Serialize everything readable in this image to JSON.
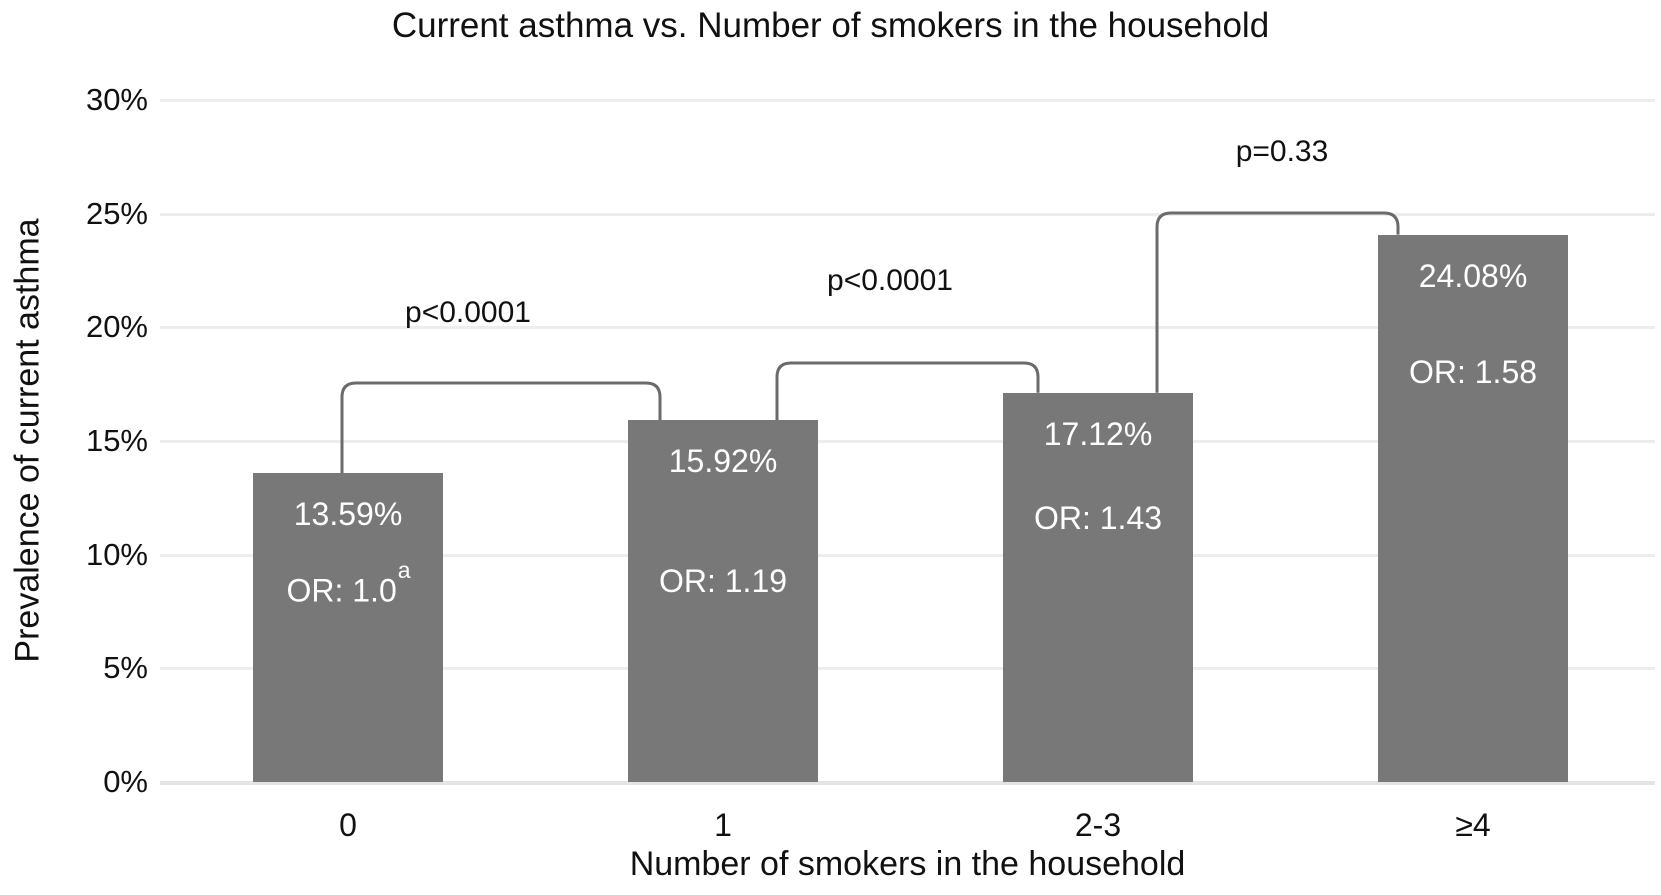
{
  "title": "Current asthma vs. Number of smokers in the household",
  "chart_data": {
    "type": "bar",
    "title": "Current asthma vs. Number of smokers in the household",
    "xlabel": "Number of smokers in the household",
    "ylabel": "Prevalence of current asthma",
    "categories": [
      "0",
      "1",
      "2-3",
      "≥4"
    ],
    "values": [
      13.59,
      15.92,
      17.12,
      24.08
    ],
    "bar_value_labels": [
      "13.59%",
      "15.92%",
      "17.12%",
      "24.08%"
    ],
    "odds_ratio_labels": [
      {
        "text": "OR: 1.0",
        "superscript": "a"
      },
      {
        "text": "OR: 1.19",
        "superscript": ""
      },
      {
        "text": "OR: 1.43",
        "superscript": ""
      },
      {
        "text": "OR: 1.58",
        "superscript": ""
      }
    ],
    "comparisons": [
      {
        "between": [
          "0",
          "1"
        ],
        "label": "p<0.0001"
      },
      {
        "between": [
          "1",
          "2-3"
        ],
        "label": "p<0.0001"
      },
      {
        "between": [
          "2-3",
          "≥4"
        ],
        "label": "p=0.33"
      }
    ],
    "y_ticks": [
      {
        "label": "0%",
        "value": 0
      },
      {
        "label": "5%",
        "value": 5
      },
      {
        "label": "10%",
        "value": 10
      },
      {
        "label": "15%",
        "value": 15
      },
      {
        "label": "20%",
        "value": 20
      },
      {
        "label": "25%",
        "value": 25
      },
      {
        "label": "30%",
        "value": 30
      }
    ],
    "ylim": [
      0,
      30
    ],
    "grid": true,
    "legend": "none",
    "colors": {
      "bar": "#787878",
      "bar_label": "#ffffff",
      "bracket": "#6b6b6b",
      "gridline": "#ededed",
      "text": "#111111"
    }
  }
}
